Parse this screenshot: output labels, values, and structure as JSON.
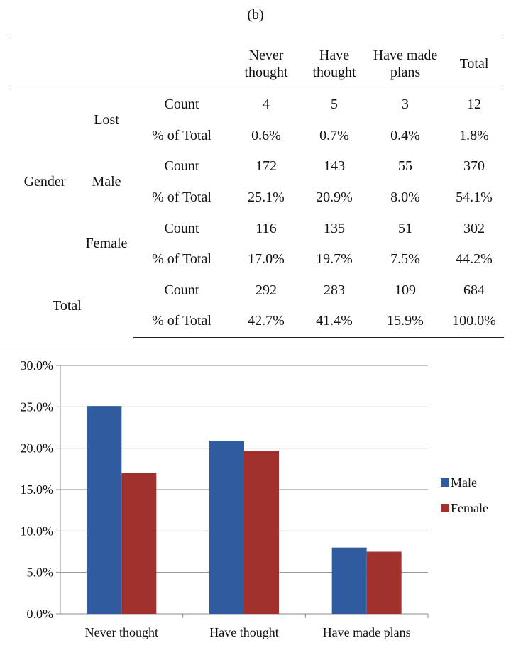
{
  "caption": "(b)",
  "table": {
    "headers": [
      {
        "line1": "Never",
        "line2": "thought"
      },
      {
        "line1": "Have",
        "line2": "thought"
      },
      {
        "line1": "Have made",
        "line2": "plans"
      },
      {
        "line1": "Total",
        "line2": ""
      }
    ],
    "gender_label": "Gender",
    "total_label": "Total",
    "groups": [
      {
        "name": "Lost",
        "count_label": "Count",
        "count": [
          "4",
          "5",
          "3",
          "12"
        ],
        "pct_label": "% of Total",
        "pct": [
          "0.6%",
          "0.7%",
          "0.4%",
          "1.8%"
        ]
      },
      {
        "name": "Male",
        "count_label": "Count",
        "count": [
          "172",
          "143",
          "55",
          "370"
        ],
        "pct_label": "% of Total",
        "pct": [
          "25.1%",
          "20.9%",
          "8.0%",
          "54.1%"
        ]
      },
      {
        "name": "Female",
        "count_label": "Count",
        "count": [
          "116",
          "135",
          "51",
          "302"
        ],
        "pct_label": "% of Total",
        "pct": [
          "17.0%",
          "19.7%",
          "7.5%",
          "44.2%"
        ]
      },
      {
        "name": "Total",
        "count_label": "Count",
        "count": [
          "292",
          "283",
          "109",
          "684"
        ],
        "pct_label": "% of Total",
        "pct": [
          "42.7%",
          "41.4%",
          "15.9%",
          "100.0%"
        ]
      }
    ]
  },
  "chart_data": {
    "type": "bar",
    "categories": [
      "Never thought",
      "Have thought",
      "Have made plans"
    ],
    "series": [
      {
        "name": "Male",
        "values": [
          25.1,
          20.9,
          8.0
        ],
        "color": "#2e5c9e"
      },
      {
        "name": "Female",
        "values": [
          17.0,
          19.7,
          7.5
        ],
        "color": "#a2302c"
      }
    ],
    "ylim": [
      0,
      30
    ],
    "yticks": [
      "0.0%",
      "5.0%",
      "10.0%",
      "15.0%",
      "20.0%",
      "25.0%",
      "30.0%"
    ],
    "ytick_values": [
      0,
      5,
      10,
      15,
      20,
      25,
      30
    ],
    "grid": true,
    "legend": "right",
    "title": "",
    "xlabel": "",
    "ylabel": ""
  }
}
